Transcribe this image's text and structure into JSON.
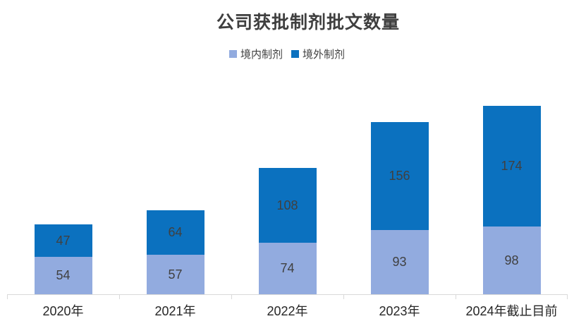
{
  "title": "公司获批制剂批文数量",
  "legend": [
    {
      "key": "domestic",
      "label": "境内制剂",
      "color": "#92abdf"
    },
    {
      "key": "overseas",
      "label": "境外制剂",
      "color": "#0b71bf"
    }
  ],
  "chart_data": {
    "type": "bar",
    "stacked": true,
    "title": "公司获批制剂批文数量",
    "categories": [
      "2020年",
      "2021年",
      "2022年",
      "2023年",
      "2024年截止目前"
    ],
    "series": [
      {
        "key": "domestic",
        "name": "境内制剂",
        "color": "#92abdf",
        "values": [
          54,
          57,
          74,
          93,
          98
        ]
      },
      {
        "key": "overseas",
        "name": "境外制剂",
        "color": "#0b71bf",
        "values": [
          47,
          64,
          108,
          156,
          174
        ]
      }
    ],
    "totals": [
      101,
      121,
      182,
      249,
      272
    ],
    "xlabel": "",
    "ylabel": "",
    "ylim": [
      0,
      280
    ],
    "grid": false,
    "y_axis_visible": false,
    "legend_position": "top",
    "data_labels": true,
    "data_label_color": "#404040",
    "axis_line_color": "#d9d9d9"
  }
}
